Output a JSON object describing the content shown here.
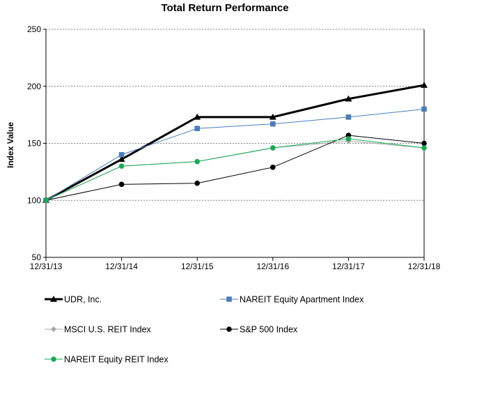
{
  "chart_data": {
    "type": "line",
    "title": "Total Return Performance",
    "xlabel": "",
    "ylabel": "Index Value",
    "categories": [
      "12/31/13",
      "12/31/14",
      "12/31/15",
      "12/31/16",
      "12/31/17",
      "12/31/18"
    ],
    "yticks": [
      50,
      100,
      150,
      200,
      250
    ],
    "ylim": [
      50,
      250
    ],
    "grid": "horizontal dotted at 100, 150, 200",
    "legend_position": "bottom",
    "series": [
      {
        "name": "UDR, Inc.",
        "values": [
          100,
          136,
          173,
          173,
          189,
          201
        ],
        "color": "#000000",
        "marker": "triangle",
        "width": 3
      },
      {
        "name": "NAREIT Equity Apartment Index",
        "values": [
          100,
          140,
          163,
          167,
          173,
          180
        ],
        "color": "#4a7ebb",
        "marker": "square",
        "width": 1
      },
      {
        "name": "MSCI U.S. REIT Index",
        "values": [
          100,
          130,
          134,
          146,
          152,
          146
        ],
        "color": "#a6a6a6",
        "marker": "diamond",
        "width": 1
      },
      {
        "name": "S&P 500 Index",
        "values": [
          100,
          114,
          115,
          129,
          157,
          150
        ],
        "color": "#000000",
        "marker": "circle",
        "width": 1
      },
      {
        "name": "NAREIT Equity REIT Index",
        "values": [
          100,
          130,
          134,
          146,
          154,
          146
        ],
        "color": "#1aaa55",
        "marker": "circle",
        "width": 1
      }
    ]
  }
}
